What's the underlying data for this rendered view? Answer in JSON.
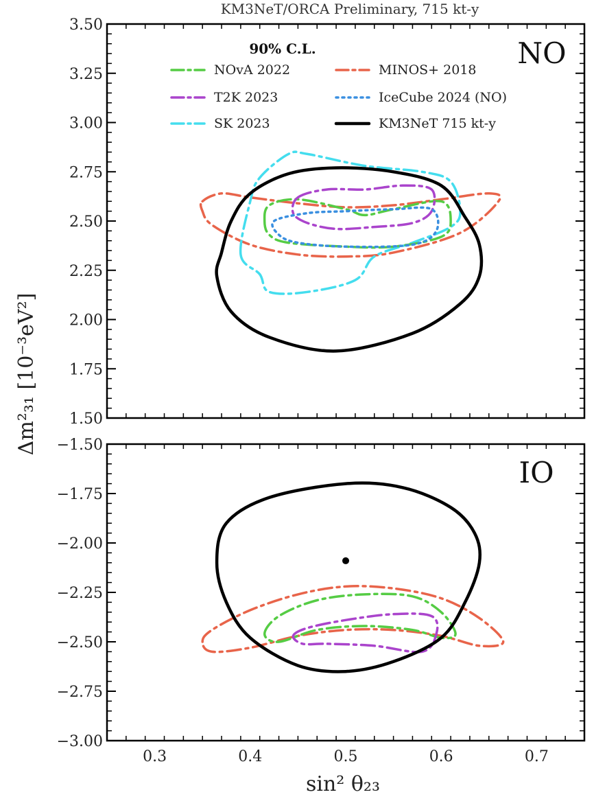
{
  "chart_data": {
    "type": "contour",
    "title": "KM3NeT/ORCA Preliminary, 715 kt-y",
    "legend_title": "90% C.L.",
    "xlabel": "sin² θ₂₃",
    "ylabel_main": "Δm²₃₁ [10⁻³eV²]",
    "xlim": [
      0.25,
      0.75
    ],
    "xticks": [
      "0.3",
      "0.4",
      "0.5",
      "0.6",
      "0.7"
    ],
    "xtick_values": [
      0.3,
      0.4,
      0.5,
      0.6,
      0.7
    ],
    "legend": [
      {
        "label": "NOvA 2022",
        "color": "#55cc44",
        "style": "dashdot"
      },
      {
        "label": "T2K 2023",
        "color": "#aa44cc",
        "style": "dashdot"
      },
      {
        "label": "SK 2023",
        "color": "#44ddee",
        "style": "dashdot"
      },
      {
        "label": "MINOS+ 2018",
        "color": "#e8644a",
        "style": "dashdot"
      },
      {
        "label": "IceCube 2024 (NO)",
        "color": "#3a8fe0",
        "style": "dotted"
      },
      {
        "label": "KM3NeT 715 kt-y",
        "color": "#000000",
        "style": "solid"
      }
    ],
    "panels": [
      {
        "name": "NO",
        "ylim": [
          1.5,
          3.5
        ],
        "yticks": [
          "1.50",
          "1.75",
          "2.00",
          "2.25",
          "2.50",
          "2.75",
          "3.00",
          "3.25",
          "3.50"
        ],
        "ytick_values": [
          1.5,
          1.75,
          2.0,
          2.25,
          2.5,
          2.75,
          3.0,
          3.25,
          3.5
        ],
        "contours": [
          {
            "series": "MINOS+ 2018",
            "points": [
              [
                0.35,
                2.6
              ],
              [
                0.37,
                2.64
              ],
              [
                0.4,
                2.62
              ],
              [
                0.45,
                2.59
              ],
              [
                0.5,
                2.57
              ],
              [
                0.55,
                2.58
              ],
              [
                0.6,
                2.61
              ],
              [
                0.65,
                2.64
              ],
              [
                0.66,
                2.6
              ],
              [
                0.62,
                2.44
              ],
              [
                0.55,
                2.34
              ],
              [
                0.5,
                2.32
              ],
              [
                0.45,
                2.33
              ],
              [
                0.4,
                2.38
              ],
              [
                0.36,
                2.48
              ],
              [
                0.35,
                2.55
              ]
            ]
          },
          {
            "series": "SK 2023",
            "points": [
              [
                0.39,
                2.33
              ],
              [
                0.4,
                2.6
              ],
              [
                0.41,
                2.72
              ],
              [
                0.44,
                2.84
              ],
              [
                0.46,
                2.84
              ],
              [
                0.52,
                2.78
              ],
              [
                0.58,
                2.75
              ],
              [
                0.61,
                2.7
              ],
              [
                0.62,
                2.55
              ],
              [
                0.61,
                2.47
              ],
              [
                0.57,
                2.39
              ],
              [
                0.53,
                2.32
              ],
              [
                0.51,
                2.2
              ],
              [
                0.46,
                2.14
              ],
              [
                0.42,
                2.14
              ],
              [
                0.41,
                2.23
              ]
            ]
          },
          {
            "series": "NOvA 2022",
            "points": [
              [
                0.415,
                2.5
              ],
              [
                0.42,
                2.58
              ],
              [
                0.45,
                2.61
              ],
              [
                0.5,
                2.56
              ],
              [
                0.52,
                2.53
              ],
              [
                0.55,
                2.56
              ],
              [
                0.6,
                2.6
              ],
              [
                0.61,
                2.5
              ],
              [
                0.6,
                2.42
              ],
              [
                0.55,
                2.37
              ],
              [
                0.5,
                2.37
              ],
              [
                0.44,
                2.39
              ],
              [
                0.42,
                2.43
              ]
            ]
          },
          {
            "series": "T2K 2023",
            "points": [
              [
                0.45,
                2.62
              ],
              [
                0.48,
                2.66
              ],
              [
                0.52,
                2.66
              ],
              [
                0.56,
                2.68
              ],
              [
                0.59,
                2.66
              ],
              [
                0.59,
                2.55
              ],
              [
                0.57,
                2.49
              ],
              [
                0.53,
                2.47
              ],
              [
                0.49,
                2.46
              ],
              [
                0.46,
                2.49
              ],
              [
                0.445,
                2.54
              ]
            ]
          },
          {
            "series": "IceCube 2024 (NO)",
            "points": [
              [
                0.425,
                2.5
              ],
              [
                0.46,
                2.54
              ],
              [
                0.5,
                2.55
              ],
              [
                0.55,
                2.56
              ],
              [
                0.59,
                2.56
              ],
              [
                0.595,
                2.45
              ],
              [
                0.57,
                2.38
              ],
              [
                0.5,
                2.37
              ],
              [
                0.45,
                2.39
              ],
              [
                0.43,
                2.43
              ]
            ]
          },
          {
            "series": "KM3NeT 715 kt-y",
            "points": [
              [
                0.49,
                2.77
              ],
              [
                0.55,
                2.75
              ],
              [
                0.6,
                2.68
              ],
              [
                0.625,
                2.52
              ],
              [
                0.64,
                2.38
              ],
              [
                0.64,
                2.22
              ],
              [
                0.62,
                2.08
              ],
              [
                0.57,
                1.93
              ],
              [
                0.49,
                1.84
              ],
              [
                0.42,
                1.91
              ],
              [
                0.38,
                2.04
              ],
              [
                0.365,
                2.22
              ],
              [
                0.37,
                2.34
              ],
              [
                0.38,
                2.5
              ],
              [
                0.4,
                2.64
              ],
              [
                0.44,
                2.74
              ]
            ]
          }
        ]
      },
      {
        "name": "IO",
        "ylim": [
          -3.0,
          -1.5
        ],
        "yticks": [
          "−3.00",
          "−2.75",
          "−2.50",
          "−2.25",
          "−2.00",
          "−1.75",
          "−1.50"
        ],
        "ytick_values": [
          -3.0,
          -2.75,
          -2.5,
          -2.25,
          -2.0,
          -1.75,
          -1.5
        ],
        "best_fit": [
          0.5,
          -2.09
        ],
        "contours": [
          {
            "series": "MINOS+ 2018",
            "points": [
              [
                0.35,
                -2.5
              ],
              [
                0.36,
                -2.44
              ],
              [
                0.4,
                -2.34
              ],
              [
                0.45,
                -2.26
              ],
              [
                0.5,
                -2.22
              ],
              [
                0.55,
                -2.23
              ],
              [
                0.6,
                -2.28
              ],
              [
                0.64,
                -2.38
              ],
              [
                0.665,
                -2.5
              ],
              [
                0.64,
                -2.52
              ],
              [
                0.6,
                -2.47
              ],
              [
                0.55,
                -2.44
              ],
              [
                0.5,
                -2.44
              ],
              [
                0.45,
                -2.47
              ],
              [
                0.4,
                -2.53
              ],
              [
                0.36,
                -2.55
              ]
            ]
          },
          {
            "series": "NOvA 2022",
            "points": [
              [
                0.415,
                -2.46
              ],
              [
                0.43,
                -2.37
              ],
              [
                0.47,
                -2.29
              ],
              [
                0.52,
                -2.26
              ],
              [
                0.57,
                -2.27
              ],
              [
                0.6,
                -2.35
              ],
              [
                0.615,
                -2.46
              ],
              [
                0.6,
                -2.48
              ],
              [
                0.57,
                -2.44
              ],
              [
                0.52,
                -2.42
              ],
              [
                0.47,
                -2.44
              ],
              [
                0.43,
                -2.5
              ]
            ]
          },
          {
            "series": "T2K 2023",
            "points": [
              [
                0.445,
                -2.47
              ],
              [
                0.46,
                -2.43
              ],
              [
                0.5,
                -2.39
              ],
              [
                0.55,
                -2.36
              ],
              [
                0.59,
                -2.37
              ],
              [
                0.595,
                -2.46
              ],
              [
                0.58,
                -2.55
              ],
              [
                0.53,
                -2.52
              ],
              [
                0.48,
                -2.51
              ],
              [
                0.455,
                -2.51
              ]
            ]
          },
          {
            "series": "KM3NeT 715 kt-y",
            "points": [
              [
                0.5,
                -1.7
              ],
              [
                0.56,
                -1.72
              ],
              [
                0.61,
                -1.82
              ],
              [
                0.635,
                -1.95
              ],
              [
                0.64,
                -2.1
              ],
              [
                0.625,
                -2.3
              ],
              [
                0.6,
                -2.48
              ],
              [
                0.55,
                -2.6
              ],
              [
                0.5,
                -2.65
              ],
              [
                0.45,
                -2.62
              ],
              [
                0.4,
                -2.48
              ],
              [
                0.375,
                -2.3
              ],
              [
                0.365,
                -2.1
              ],
              [
                0.375,
                -1.9
              ],
              [
                0.42,
                -1.77
              ]
            ]
          }
        ]
      }
    ]
  }
}
